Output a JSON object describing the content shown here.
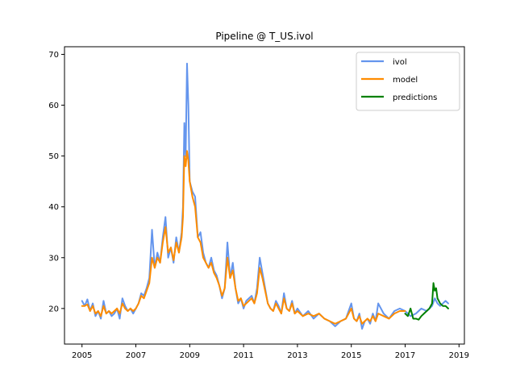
{
  "figure": {
    "title": "Pipeline @ T_US.ivol"
  },
  "chart_data": {
    "type": "line",
    "title": "Pipeline @ T_US.ivol",
    "xlabel": "",
    "ylabel": "",
    "xlim": [
      2004.35,
      2019.2
    ],
    "ylim": [
      13.0,
      71.5
    ],
    "x_ticks": [
      2005,
      2007,
      2009,
      2011,
      2013,
      2015,
      2017,
      2019
    ],
    "y_ticks": [
      20,
      30,
      40,
      50,
      60,
      70
    ],
    "grid": false,
    "legend_position": "top-right",
    "colors": {
      "ivol": "#6495ed",
      "model": "#ff8c00",
      "predictions": "#008000"
    },
    "series": [
      {
        "name": "ivol",
        "color": "#6495ed",
        "x": [
          2005.0,
          2005.1,
          2005.2,
          2005.3,
          2005.4,
          2005.5,
          2005.6,
          2005.7,
          2005.8,
          2005.9,
          2006.0,
          2006.1,
          2006.2,
          2006.3,
          2006.4,
          2006.5,
          2006.6,
          2006.7,
          2006.8,
          2006.9,
          2007.0,
          2007.1,
          2007.2,
          2007.3,
          2007.4,
          2007.5,
          2007.6,
          2007.7,
          2007.8,
          2007.9,
          2008.0,
          2008.1,
          2008.2,
          2008.3,
          2008.4,
          2008.5,
          2008.6,
          2008.7,
          2008.75,
          2008.8,
          2008.85,
          2008.9,
          2008.95,
          2009.0,
          2009.1,
          2009.2,
          2009.3,
          2009.4,
          2009.5,
          2009.6,
          2009.7,
          2009.8,
          2009.9,
          2010.0,
          2010.1,
          2010.2,
          2010.3,
          2010.4,
          2010.5,
          2010.6,
          2010.7,
          2010.8,
          2010.9,
          2011.0,
          2011.1,
          2011.2,
          2011.3,
          2011.4,
          2011.5,
          2011.6,
          2011.7,
          2011.8,
          2011.9,
          2012.0,
          2012.1,
          2012.2,
          2012.3,
          2012.4,
          2012.5,
          2012.6,
          2012.7,
          2012.8,
          2012.9,
          2013.0,
          2013.2,
          2013.4,
          2013.6,
          2013.8,
          2014.0,
          2014.2,
          2014.4,
          2014.6,
          2014.8,
          2015.0,
          2015.1,
          2015.2,
          2015.3,
          2015.4,
          2015.5,
          2015.6,
          2015.7,
          2015.8,
          2015.9,
          2016.0,
          2016.2,
          2016.4,
          2016.6,
          2016.8,
          2017.0,
          2017.2,
          2017.4,
          2017.6,
          2017.8,
          2018.0,
          2018.1,
          2018.2,
          2018.3,
          2018.4,
          2018.5,
          2018.6
        ],
        "values": [
          21.5,
          20.5,
          21.8,
          19.5,
          21.0,
          18.5,
          19.5,
          18.0,
          21.5,
          19.0,
          19.5,
          18.5,
          19.0,
          20.0,
          18.0,
          22.0,
          20.5,
          19.5,
          20.0,
          19.0,
          20.0,
          21.0,
          23.0,
          22.5,
          24.0,
          26.0,
          35.5,
          28.0,
          31.0,
          29.0,
          34.0,
          38.0,
          30.0,
          32.0,
          29.0,
          34.0,
          31.0,
          35.0,
          40.0,
          56.5,
          50.0,
          68.2,
          60.0,
          45.0,
          43.0,
          42.0,
          34.0,
          35.0,
          31.0,
          29.0,
          28.0,
          30.0,
          27.5,
          26.5,
          24.5,
          22.0,
          24.0,
          33.0,
          26.0,
          29.0,
          24.0,
          21.0,
          22.0,
          20.0,
          21.5,
          22.0,
          22.5,
          21.0,
          24.0,
          30.0,
          27.0,
          24.0,
          21.0,
          20.0,
          19.5,
          21.5,
          20.5,
          19.0,
          23.0,
          20.0,
          19.5,
          21.5,
          19.0,
          20.0,
          18.5,
          19.5,
          18.0,
          19.0,
          18.0,
          17.5,
          16.5,
          17.5,
          18.0,
          21.0,
          18.0,
          17.5,
          19.0,
          16.0,
          17.5,
          18.0,
          17.0,
          19.0,
          17.5,
          21.0,
          19.0,
          18.0,
          19.5,
          20.0,
          19.5,
          18.5,
          19.0,
          20.0,
          19.5,
          20.5,
          22.0,
          21.0,
          20.5,
          21.0,
          21.5,
          21.0
        ]
      },
      {
        "name": "model",
        "color": "#ff8c00",
        "x": [
          2005.0,
          2005.1,
          2005.2,
          2005.3,
          2005.4,
          2005.5,
          2005.6,
          2005.7,
          2005.8,
          2005.9,
          2006.0,
          2006.1,
          2006.2,
          2006.3,
          2006.4,
          2006.5,
          2006.6,
          2006.7,
          2006.8,
          2006.9,
          2007.0,
          2007.1,
          2007.2,
          2007.3,
          2007.4,
          2007.5,
          2007.6,
          2007.7,
          2007.8,
          2007.9,
          2008.0,
          2008.1,
          2008.2,
          2008.3,
          2008.4,
          2008.5,
          2008.6,
          2008.7,
          2008.75,
          2008.8,
          2008.85,
          2008.9,
          2008.95,
          2009.0,
          2009.1,
          2009.2,
          2009.3,
          2009.4,
          2009.5,
          2009.6,
          2009.7,
          2009.8,
          2009.9,
          2010.0,
          2010.1,
          2010.2,
          2010.3,
          2010.4,
          2010.5,
          2010.6,
          2010.7,
          2010.8,
          2010.9,
          2011.0,
          2011.1,
          2011.2,
          2011.3,
          2011.4,
          2011.5,
          2011.6,
          2011.7,
          2011.8,
          2011.9,
          2012.0,
          2012.1,
          2012.2,
          2012.3,
          2012.4,
          2012.5,
          2012.6,
          2012.7,
          2012.8,
          2012.9,
          2013.0,
          2013.2,
          2013.4,
          2013.6,
          2013.8,
          2014.0,
          2014.2,
          2014.4,
          2014.6,
          2014.8,
          2015.0,
          2015.1,
          2015.2,
          2015.3,
          2015.4,
          2015.5,
          2015.6,
          2015.7,
          2015.8,
          2015.9,
          2016.0,
          2016.2,
          2016.4,
          2016.6,
          2016.8,
          2017.0
        ],
        "values": [
          20.5,
          20.5,
          20.8,
          19.5,
          20.5,
          19.0,
          19.5,
          18.5,
          20.5,
          19.0,
          19.5,
          19.0,
          19.5,
          20.0,
          19.0,
          21.0,
          20.0,
          19.5,
          20.0,
          19.5,
          20.0,
          21.0,
          22.5,
          22.0,
          23.5,
          25.0,
          30.0,
          28.0,
          30.0,
          29.0,
          33.0,
          36.0,
          31.0,
          32.0,
          29.5,
          33.0,
          31.0,
          34.0,
          38.0,
          50.0,
          48.0,
          51.0,
          49.0,
          45.0,
          42.0,
          40.0,
          34.0,
          33.0,
          30.0,
          29.0,
          28.0,
          29.0,
          27.0,
          26.0,
          24.5,
          22.5,
          24.0,
          30.0,
          26.0,
          27.5,
          24.0,
          21.5,
          22.0,
          20.5,
          21.0,
          21.5,
          22.0,
          21.0,
          23.0,
          28.0,
          26.0,
          23.5,
          21.0,
          20.0,
          19.5,
          21.0,
          20.0,
          19.0,
          22.0,
          20.0,
          19.5,
          21.0,
          19.0,
          19.5,
          18.5,
          19.0,
          18.5,
          19.0,
          18.0,
          17.5,
          17.0,
          17.5,
          18.0,
          20.0,
          18.0,
          17.5,
          18.5,
          17.0,
          17.5,
          18.0,
          17.5,
          18.5,
          17.5,
          19.0,
          18.5,
          18.0,
          19.0,
          19.5,
          19.5
        ]
      },
      {
        "name": "predictions",
        "color": "#008000",
        "x": [
          2017.0,
          2017.1,
          2017.2,
          2017.3,
          2017.4,
          2017.5,
          2017.6,
          2017.7,
          2017.8,
          2017.9,
          2018.0,
          2018.05,
          2018.1,
          2018.15,
          2018.2,
          2018.3,
          2018.4,
          2018.5,
          2018.6
        ],
        "values": [
          19.0,
          18.5,
          20.0,
          18.0,
          18.0,
          17.8,
          18.5,
          19.0,
          19.5,
          20.0,
          21.0,
          25.0,
          23.5,
          24.0,
          22.0,
          21.0,
          20.5,
          20.5,
          20.0
        ]
      }
    ]
  }
}
